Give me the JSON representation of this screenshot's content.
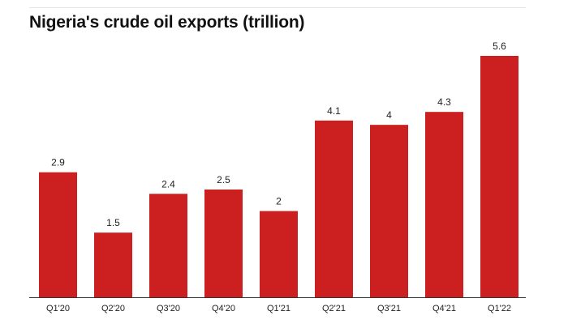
{
  "chart_data": {
    "type": "bar",
    "title": "Nigeria's crude oil exports (trillion)",
    "xlabel": "",
    "ylabel": "",
    "categories": [
      "Q1'20",
      "Q2'20",
      "Q3'20",
      "Q4'20",
      "Q1'21",
      "Q2'21",
      "Q3'21",
      "Q4'21",
      "Q1'22"
    ],
    "values": [
      2.9,
      1.5,
      2.4,
      2.5,
      2,
      4.1,
      4,
      4.3,
      5.6
    ],
    "value_labels": [
      "2.9",
      "1.5",
      "2.4",
      "2.5",
      "2",
      "4.1",
      "4",
      "4.3",
      "5.6"
    ],
    "ylim": [
      0,
      5.6
    ],
    "grid": false,
    "legend": "none",
    "bar_color": "#cc1f1f"
  }
}
